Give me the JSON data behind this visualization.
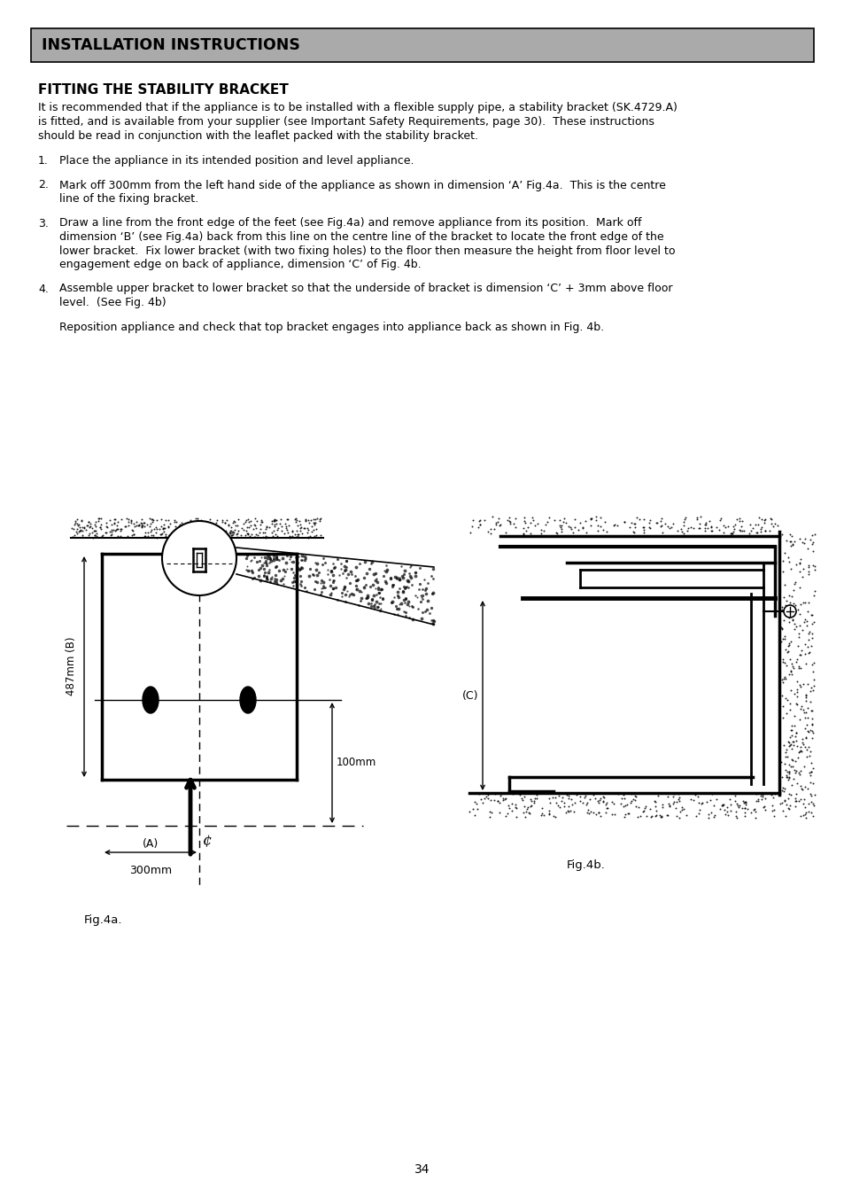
{
  "bg_color": "#ffffff",
  "header_bg": "#aaaaaa",
  "header_text": "INSTALLATION INSTRUCTIONS",
  "section_title": "FITTING THE STABILITY BRACKET",
  "intro_text": "It is recommended that if the appliance is to be installed with a flexible supply pipe, a stability bracket (SK.4729.A)\nis fitted, and is available from your supplier (see Important Safety Requirements, page 30).  These instructions\nshould be read in conjunction with the leaflet packed with the stability bracket.",
  "step1": "Place the appliance in its intended position and level appliance.",
  "step2": "Mark off 300mm from the left hand side of the appliance as shown in dimension ‘A’ Fig.4a.  This is the centre\nline of the fixing bracket.",
  "step3": "Draw a line from the front edge of the feet (see Fig.4a) and remove appliance from its position.  Mark off\ndimension ‘B’ (see Fig.4a) back from this line on the centre line of the bracket to locate the front edge of the\nlower bracket.  Fix lower bracket (with two fixing holes) to the floor then measure the height from floor level to\nengagement edge on back of appliance, dimension ‘C’ of Fig. 4b.",
  "step4": "Assemble upper bracket to lower bracket so that the underside of bracket is dimension ‘C’ + 3mm above floor\nlevel.  (See Fig. 4b)",
  "extra_para": "Reposition appliance and check that top bracket engages into appliance back as shown in Fig. 4b.",
  "fig4a_label": "Fig.4a.",
  "fig4b_label": "Fig.4b.",
  "page_number": "34"
}
